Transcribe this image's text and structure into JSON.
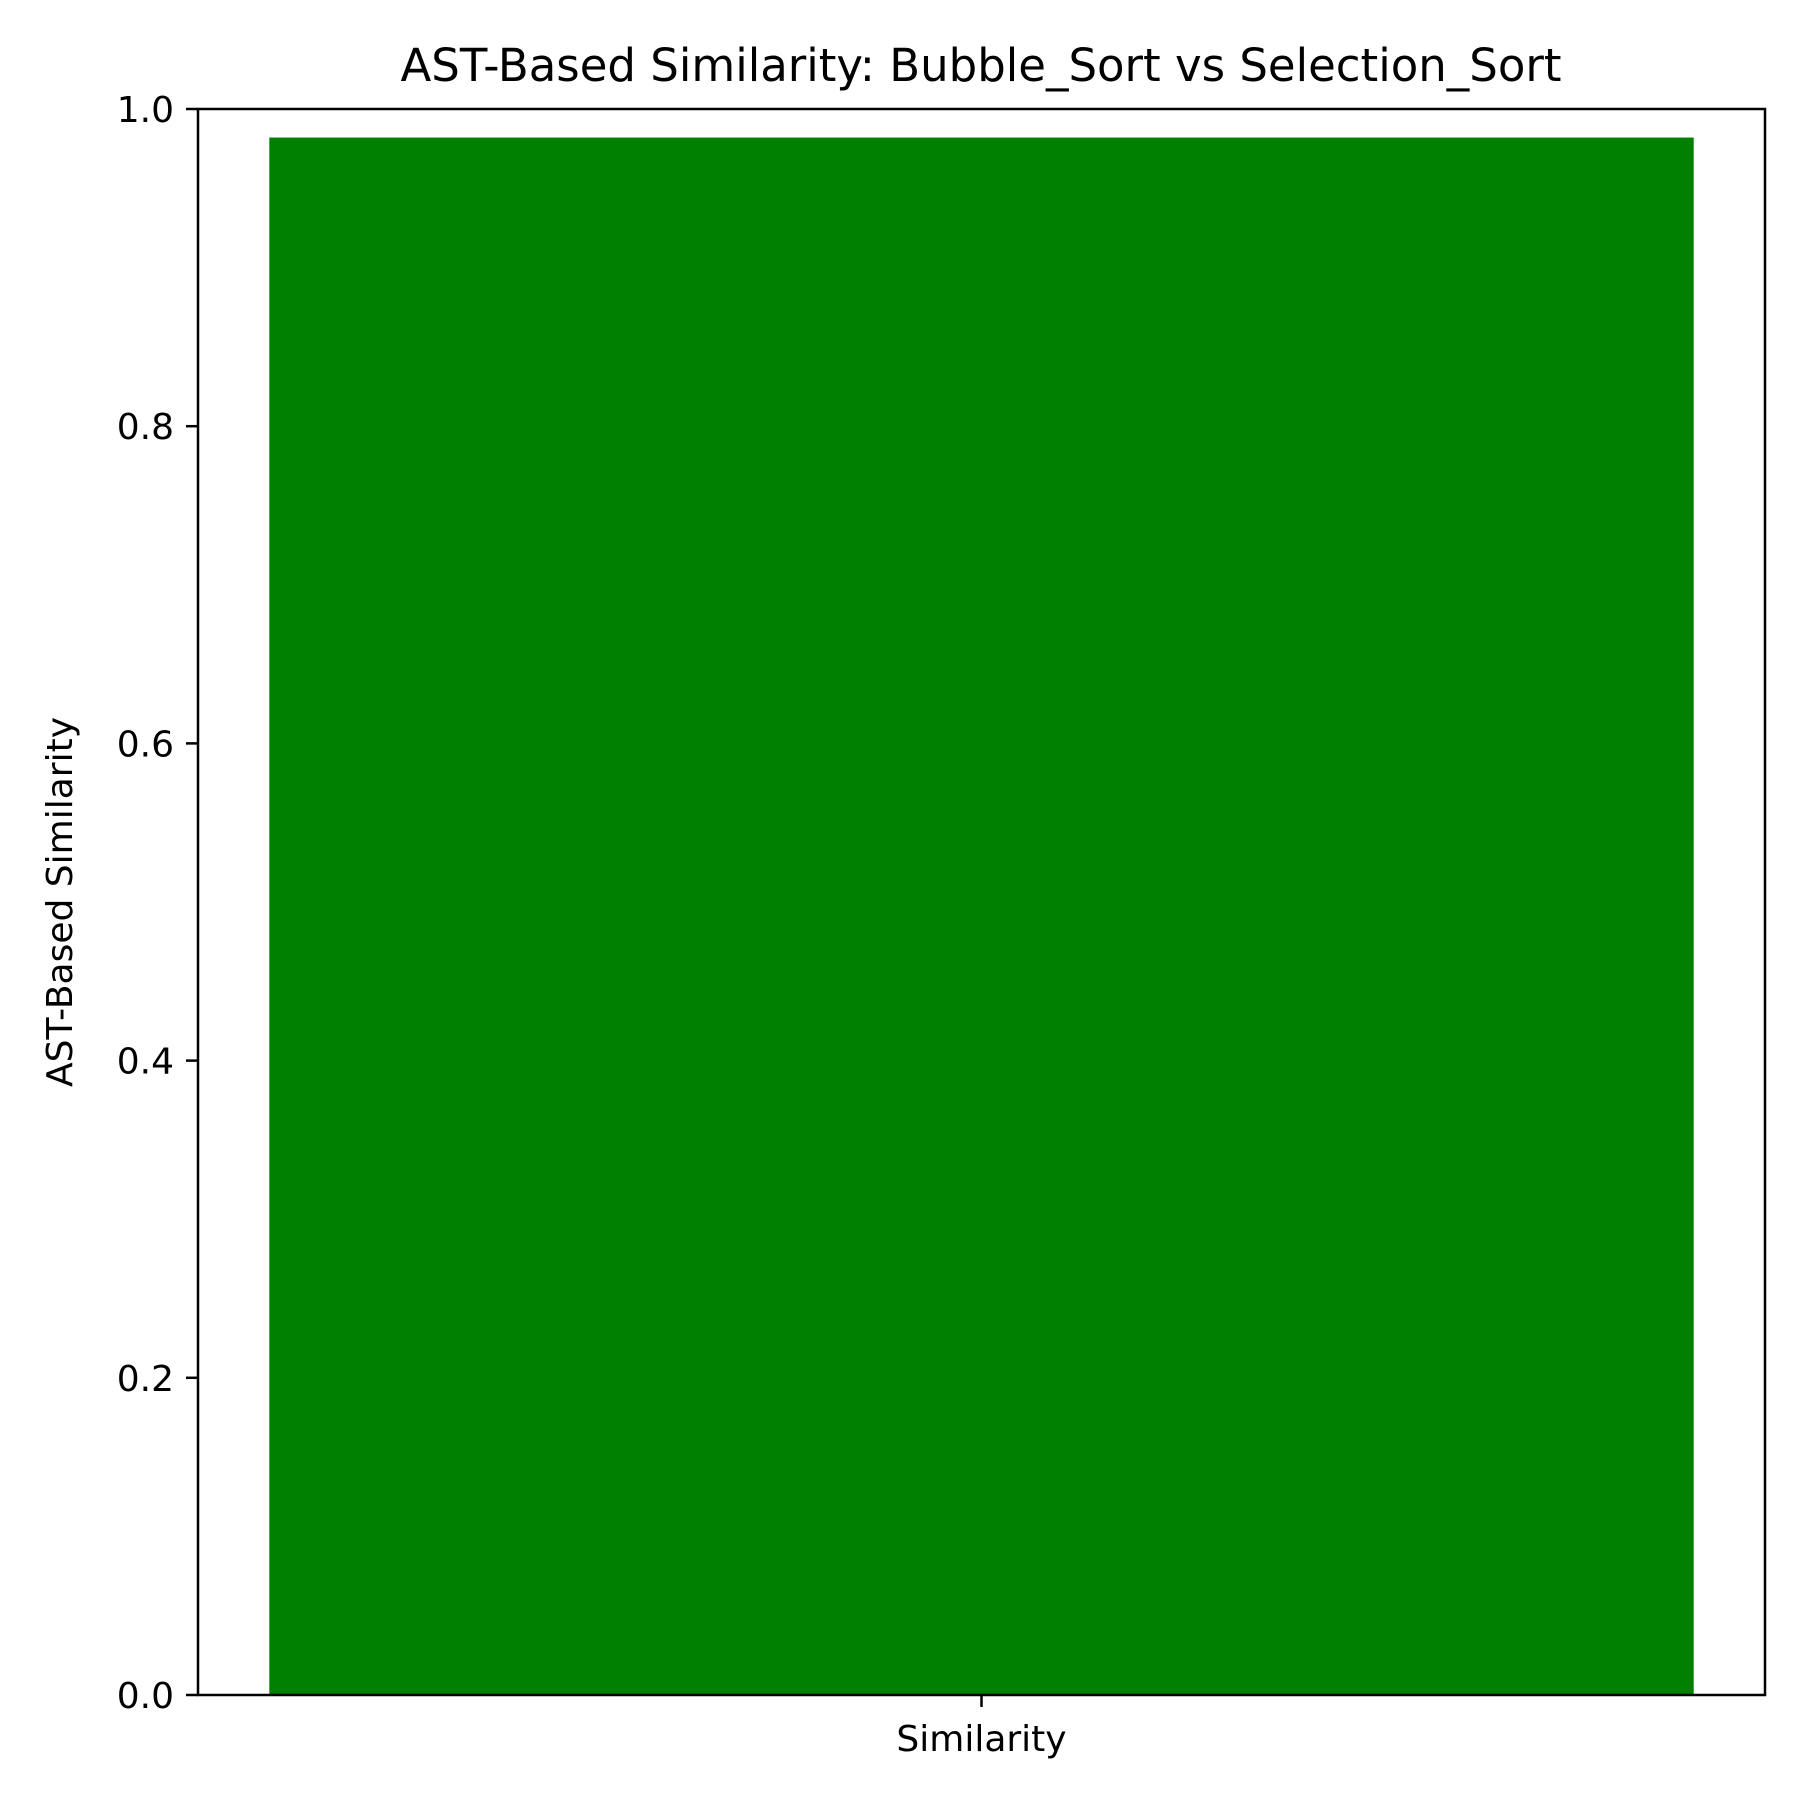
{
  "chart_data": {
    "type": "bar",
    "title": "AST-Based Similarity: Bubble_Sort vs Selection_Sort",
    "xlabel": "",
    "ylabel": "AST-Based Similarity",
    "categories": [
      "Similarity"
    ],
    "values": [
      0.982
    ],
    "ylim": [
      0,
      1.0
    ],
    "yticks": [
      "0.0",
      "0.2",
      "0.4",
      "0.6",
      "0.8",
      "1.0"
    ],
    "grid": false,
    "legend": "none",
    "bar_color": "#008000"
  }
}
